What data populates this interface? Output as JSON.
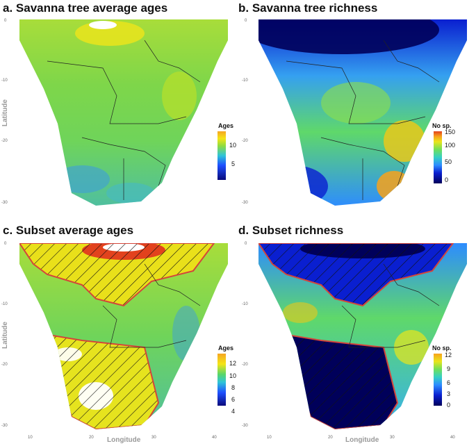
{
  "panels": [
    {
      "id": "a",
      "title": "a. Savanna tree average ages",
      "legend_title": "Ages",
      "legend_ticks": [
        "10",
        "5"
      ],
      "y_ticks": [
        "0",
        "-10",
        "-20",
        "-30"
      ],
      "x_ticks": [],
      "ylabel": "Latitude",
      "xlabel": ""
    },
    {
      "id": "b",
      "title": "b. Savanna tree richness",
      "legend_title": "No sp.",
      "legend_ticks": [
        "150",
        "100",
        "50",
        "0"
      ],
      "y_ticks": [
        "0",
        "-10",
        "-20",
        "-30"
      ],
      "x_ticks": [],
      "ylabel": "",
      "xlabel": ""
    },
    {
      "id": "c",
      "title": "c. Subset average ages",
      "legend_title": "Ages",
      "legend_ticks": [
        "12",
        "10",
        "8",
        "6",
        "4"
      ],
      "y_ticks": [
        "0",
        "-10",
        "-20",
        "-30"
      ],
      "x_ticks": [
        "10",
        "20",
        "30",
        "40"
      ],
      "ylabel": "Latitude",
      "xlabel": "Longitude"
    },
    {
      "id": "d",
      "title": "d. Subset richness",
      "legend_title": "No sp.",
      "legend_ticks": [
        "12",
        "9",
        "6",
        "3",
        "0"
      ],
      "y_ticks": [
        "0",
        "-10",
        "-20",
        "-30"
      ],
      "x_ticks": [
        "10",
        "20",
        "30",
        "40"
      ],
      "ylabel": "",
      "xlabel": "Longitude"
    }
  ],
  "colors": {
    "age_scale": [
      "#0a0a7a",
      "#1e4fff",
      "#2fc4d8",
      "#56d66a",
      "#a6e03a",
      "#f5e516",
      "#f5a623"
    ],
    "richness_scale": [
      "#00005a",
      "#0a1fd0",
      "#2d8cff",
      "#35d0c4",
      "#6fe05a",
      "#e9e51b",
      "#f7a21b",
      "#e2421d"
    ],
    "hatch_outline": "#d4453a"
  }
}
